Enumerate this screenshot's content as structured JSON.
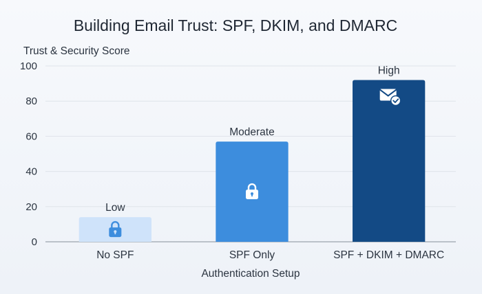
{
  "chart_data": {
    "type": "bar",
    "title": "Building Email Trust: SPF, DKIM, and DMARC",
    "ylabel": "Trust & Security Score",
    "xlabel": "Authentication Setup",
    "ylim": [
      0,
      100
    ],
    "yticks": [
      "0",
      "20",
      "40",
      "60",
      "80",
      "100"
    ],
    "categories": [
      "No SPF",
      "SPF Only",
      "SPF + DKIM + DMARC"
    ],
    "values": [
      14,
      57,
      92
    ],
    "data_labels": [
      "Low",
      "Moderate",
      "High"
    ],
    "bar_colors": [
      "#cfe3fa",
      "#3d8ddd",
      "#134a85"
    ],
    "icons": [
      "lock-icon",
      "lock-icon",
      "verified-mail-icon"
    ],
    "grid": true,
    "legend": "none"
  }
}
